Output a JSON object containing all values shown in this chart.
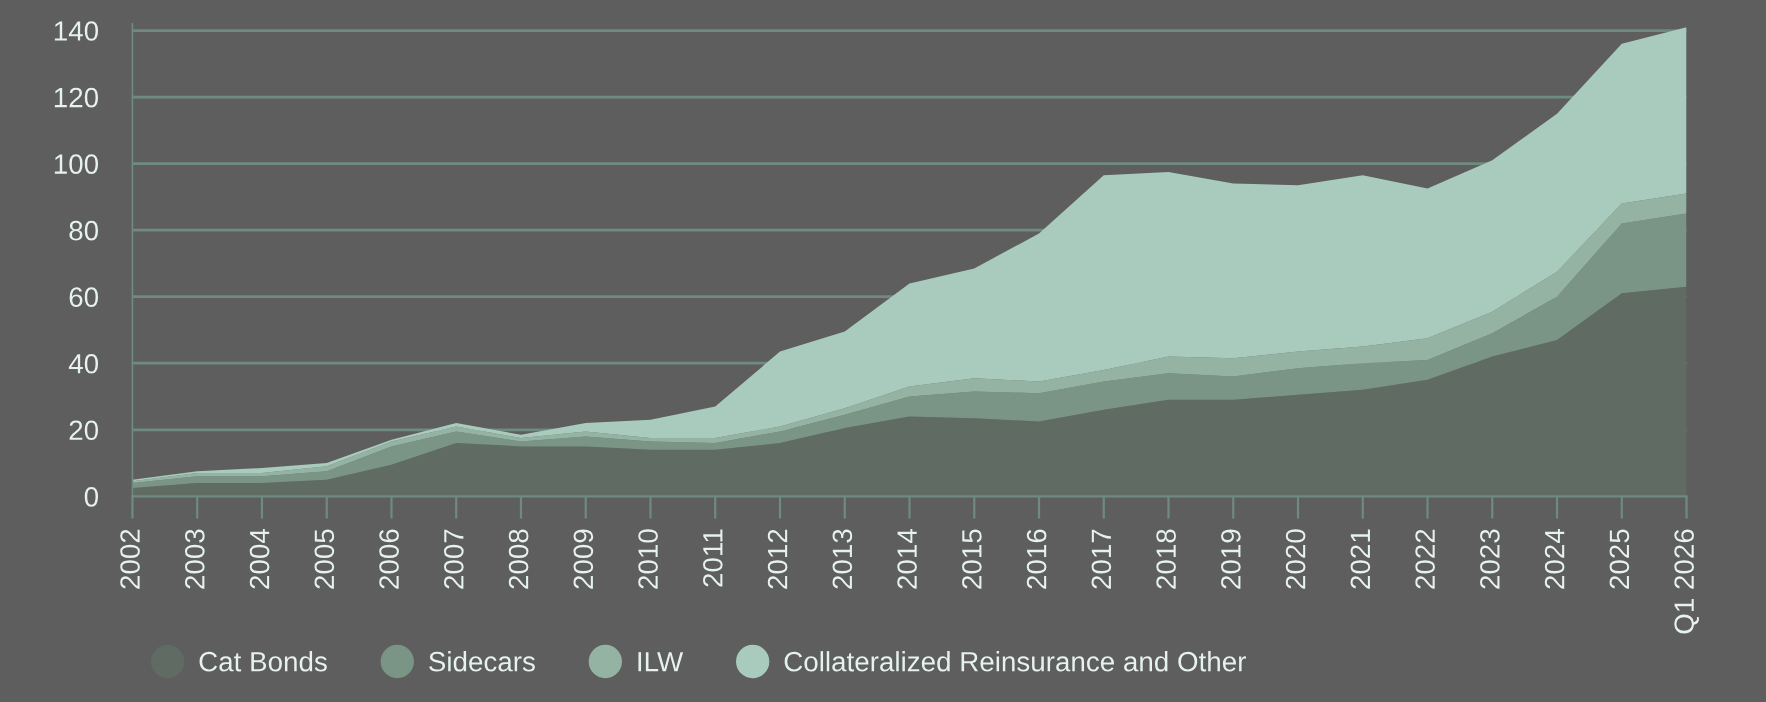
{
  "chart_data": {
    "type": "area",
    "stacked": true,
    "categories": [
      "2002",
      "2003",
      "2004",
      "2005",
      "2006",
      "2007",
      "2008",
      "2009",
      "2010",
      "2011",
      "2012",
      "2013",
      "2014",
      "2015",
      "2016",
      "2017",
      "2018",
      "2019",
      "2020",
      "2021",
      "2022",
      "2023",
      "2024",
      "2025",
      "Q1 2026"
    ],
    "series": [
      {
        "name": "Cat Bonds",
        "color": "#5f6b63",
        "values": [
          2.5,
          4,
          4,
          5,
          9.5,
          16,
          15,
          15,
          14,
          14,
          16,
          20.5,
          24,
          23.5,
          22.5,
          26,
          29,
          29,
          30.5,
          32,
          35,
          42,
          47,
          61,
          63
        ]
      },
      {
        "name": "Sidecars",
        "color": "#7a9585",
        "values": [
          1.5,
          2,
          2,
          2.5,
          5.5,
          3.5,
          1.5,
          3,
          2.5,
          2,
          3.5,
          4,
          6,
          8,
          8.5,
          8.5,
          8,
          7,
          8,
          8,
          6,
          7,
          13,
          21,
          22
        ]
      },
      {
        "name": "ILW",
        "color": "#94b3a2",
        "values": [
          0.5,
          1,
          1,
          1.5,
          1.5,
          1.5,
          1,
          1.5,
          1,
          1.5,
          1.5,
          2,
          3,
          4,
          3.5,
          3.5,
          5,
          5.5,
          5,
          5,
          6.5,
          6.5,
          7.5,
          6,
          6
        ]
      },
      {
        "name": "Collateralized Reinsurance and Other",
        "color": "#a8cbbd",
        "values": [
          0.5,
          0.5,
          1.5,
          1,
          0.5,
          1,
          1,
          2.5,
          5.5,
          9.5,
          22.5,
          23,
          31,
          33,
          44.5,
          58.5,
          55.5,
          52.5,
          50,
          51.5,
          45,
          45.5,
          47.5,
          48,
          50
        ]
      }
    ],
    "ylim": [
      0,
      142
    ],
    "yticks": [
      0,
      20,
      40,
      60,
      80,
      100,
      120,
      140
    ],
    "grid": "y",
    "legend": "bottom left"
  }
}
